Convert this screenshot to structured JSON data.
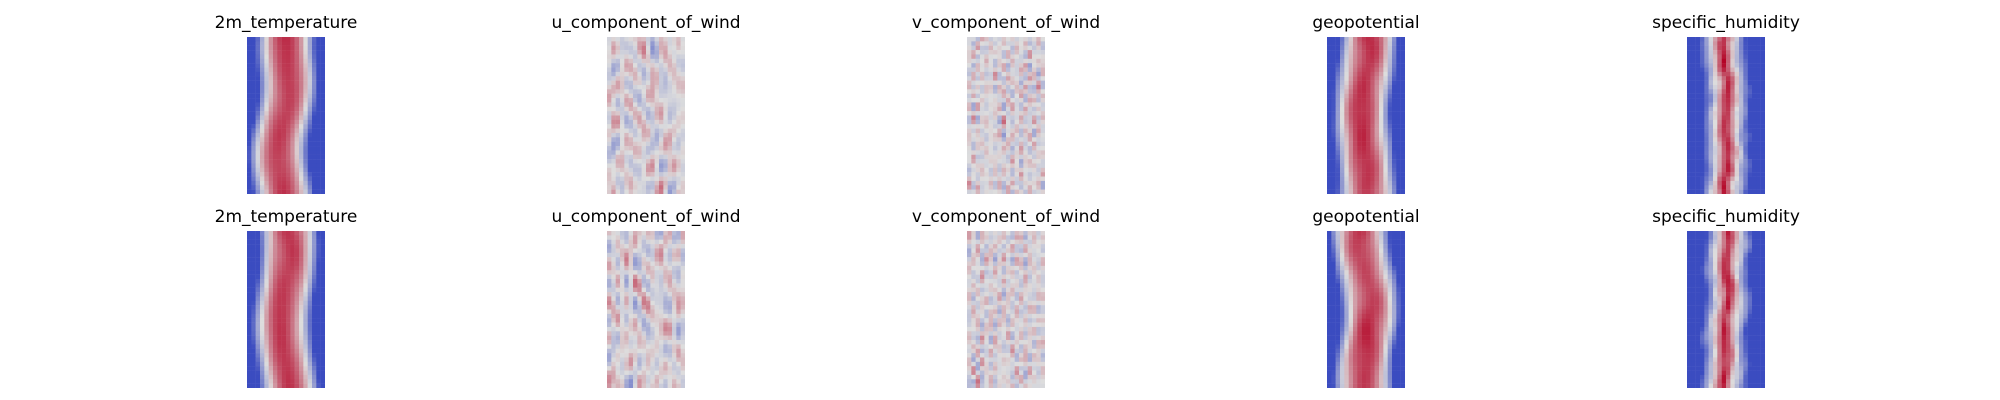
{
  "chart_data": {
    "type": "heatmap",
    "colormap": "coolwarm",
    "axes": "off",
    "layout": "2 rows x 5 columns",
    "panels": [
      {
        "row": 1,
        "col": 1,
        "title": "2m_temperature",
        "pattern": "band"
      },
      {
        "row": 1,
        "col": 2,
        "title": "u_component_of_wind",
        "pattern": "blobs"
      },
      {
        "row": 1,
        "col": 3,
        "title": "v_component_of_wind",
        "pattern": "noise"
      },
      {
        "row": 1,
        "col": 4,
        "title": "geopotential",
        "pattern": "band"
      },
      {
        "row": 1,
        "col": 5,
        "title": "specific_humidity",
        "pattern": "humid"
      },
      {
        "row": 2,
        "col": 1,
        "title": "2m_temperature",
        "pattern": "band"
      },
      {
        "row": 2,
        "col": 2,
        "title": "u_component_of_wind",
        "pattern": "blobs"
      },
      {
        "row": 2,
        "col": 3,
        "title": "v_component_of_wind",
        "pattern": "noise"
      },
      {
        "row": 2,
        "col": 4,
        "title": "geopotential",
        "pattern": "band"
      },
      {
        "row": 2,
        "col": 5,
        "title": "specific_humidity",
        "pattern": "humid"
      }
    ]
  },
  "colors": {
    "low": "#3b4cc0",
    "mid": "#dddddd",
    "high": "#b40426"
  }
}
